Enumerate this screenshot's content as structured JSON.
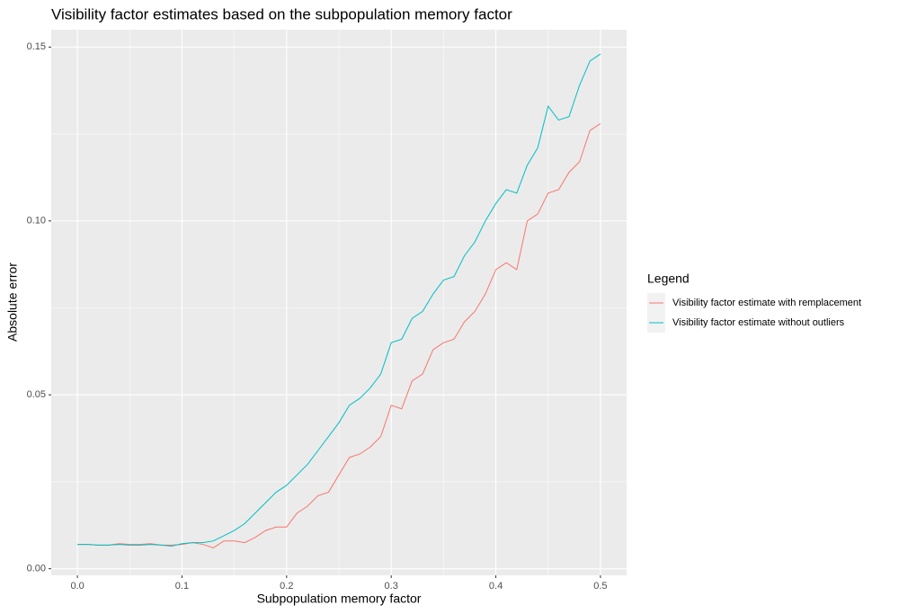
{
  "chart_data": {
    "type": "line",
    "title": "Visibility factor estimates based on the subpopulation memory factor",
    "x_label": "Subpopulation memory factor",
    "y_label": "Absolute error",
    "legend_title": "Legend",
    "legend_position": "right",
    "grid": true,
    "x": [
      0,
      0.01,
      0.02,
      0.03,
      0.04,
      0.05,
      0.06,
      0.07,
      0.08,
      0.09,
      0.1,
      0.11,
      0.12,
      0.13,
      0.14,
      0.15,
      0.16,
      0.17,
      0.18,
      0.19,
      0.2,
      0.21,
      0.22,
      0.23,
      0.24,
      0.25,
      0.26,
      0.27,
      0.28,
      0.29,
      0.3,
      0.31,
      0.32,
      0.33,
      0.34,
      0.35,
      0.36,
      0.37,
      0.38,
      0.39,
      0.4,
      0.41,
      0.42,
      0.43,
      0.44,
      0.45,
      0.46,
      0.47,
      0.48,
      0.49,
      0.5
    ],
    "series": [
      {
        "name": "Visibility factor estimate with remplacement",
        "color": "#f8766d",
        "values": [
          0.007,
          0.007,
          0.0068,
          0.0068,
          0.0072,
          0.007,
          0.007,
          0.0072,
          0.0068,
          0.0068,
          0.007,
          0.0075,
          0.007,
          0.006,
          0.008,
          0.008,
          0.0075,
          0.009,
          0.011,
          0.012,
          0.012,
          0.016,
          0.018,
          0.021,
          0.022,
          0.027,
          0.032,
          0.033,
          0.035,
          0.038,
          0.047,
          0.046,
          0.054,
          0.056,
          0.063,
          0.065,
          0.066,
          0.071,
          0.074,
          0.079,
          0.086,
          0.088,
          0.086,
          0.1,
          0.102,
          0.108,
          0.109,
          0.114,
          0.117,
          0.126,
          0.128
        ]
      },
      {
        "name": "Visibility factor estimate without outliers",
        "color": "#00bfc4",
        "values": [
          0.007,
          0.007,
          0.0068,
          0.0068,
          0.007,
          0.0068,
          0.0068,
          0.007,
          0.0068,
          0.0065,
          0.0072,
          0.0075,
          0.0075,
          0.008,
          0.0095,
          0.011,
          0.013,
          0.016,
          0.019,
          0.022,
          0.024,
          0.027,
          0.03,
          0.034,
          0.038,
          0.042,
          0.047,
          0.049,
          0.052,
          0.056,
          0.065,
          0.066,
          0.072,
          0.074,
          0.079,
          0.083,
          0.084,
          0.09,
          0.094,
          0.1,
          0.105,
          0.109,
          0.108,
          0.116,
          0.121,
          0.133,
          0.129,
          0.13,
          0.139,
          0.146,
          0.148
        ]
      }
    ],
    "xlim": [
      -0.025,
      0.525
    ],
    "xticks": [
      {
        "value": 0,
        "label": "0.0"
      },
      {
        "value": 0.1,
        "label": "0.1"
      },
      {
        "value": 0.2,
        "label": "0.2"
      },
      {
        "value": 0.3,
        "label": "0.3"
      },
      {
        "value": 0.4,
        "label": "0.4"
      },
      {
        "value": 0.5,
        "label": "0.5"
      }
    ],
    "ylim": [
      -0.0019,
      0.155
    ],
    "yticks": [
      {
        "value": 0,
        "label": "0.00"
      },
      {
        "value": 0.05,
        "label": "0.05"
      },
      {
        "value": 0.1,
        "label": "0.10"
      },
      {
        "value": 0.15,
        "label": "0.15"
      }
    ]
  }
}
